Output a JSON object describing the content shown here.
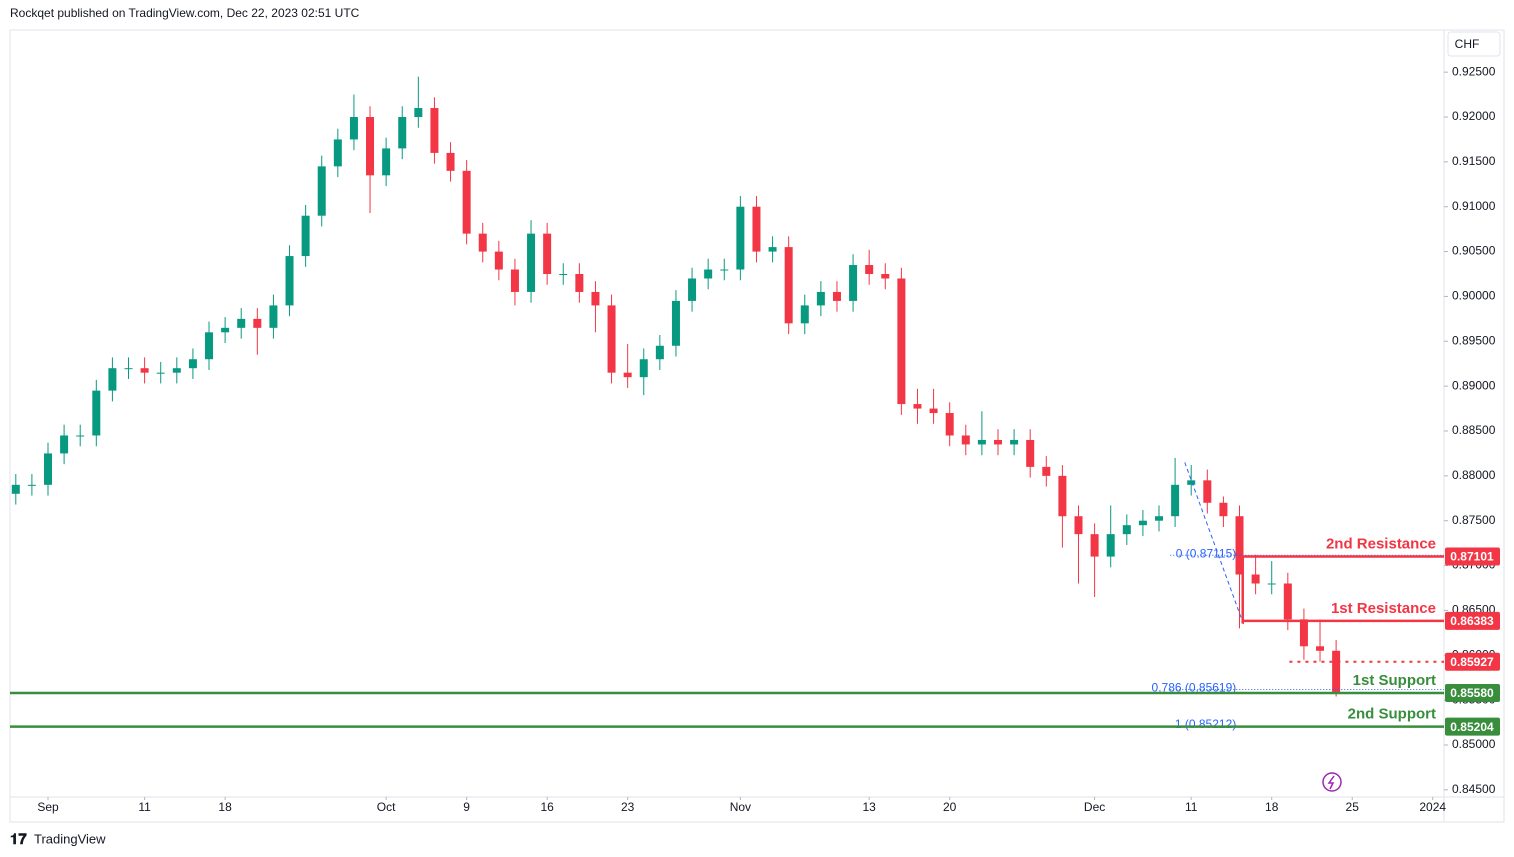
{
  "header": {
    "text": "Rockqet published on TradingView.com, Dec 22, 2023 02:51 UTC"
  },
  "footer": {
    "brand": "TradingView"
  },
  "chart_data": {
    "type": "candlestick",
    "currency": "CHF",
    "up_color": "#089981",
    "down_color": "#f23645",
    "grid": false,
    "x": [
      -2,
      -1,
      0,
      1,
      2,
      3,
      4,
      5,
      6,
      7,
      8,
      9,
      10,
      11,
      12,
      13,
      14,
      15,
      16,
      17,
      18,
      19,
      20,
      21,
      22,
      23,
      24,
      25,
      26,
      27,
      28,
      29,
      30,
      31,
      32,
      33,
      34,
      35,
      36,
      37,
      38,
      39,
      40,
      41,
      42,
      43,
      44,
      45,
      46,
      47,
      48,
      49,
      50,
      51,
      52,
      53,
      54,
      55,
      56,
      57,
      58,
      59,
      60,
      61,
      62,
      63,
      64,
      65,
      66,
      67,
      68,
      69,
      70,
      71,
      72,
      73,
      74,
      75,
      76,
      77,
      78,
      79,
      80
    ],
    "open": [
      0.878,
      0.879,
      0.879,
      0.8825,
      0.8845,
      0.8845,
      0.8895,
      0.892,
      0.892,
      0.8915,
      0.8915,
      0.892,
      0.893,
      0.896,
      0.8965,
      0.8975,
      0.8965,
      0.899,
      0.9045,
      0.909,
      0.9145,
      0.9175,
      0.92,
      0.9135,
      0.9165,
      0.92,
      0.921,
      0.916,
      0.914,
      0.907,
      0.905,
      0.903,
      0.9005,
      0.907,
      0.9025,
      0.9025,
      0.9005,
      0.899,
      0.8915,
      0.891,
      0.893,
      0.8945,
      0.8995,
      0.902,
      0.903,
      0.903,
      0.91,
      0.905,
      0.9055,
      0.897,
      0.899,
      0.9005,
      0.8995,
      0.9035,
      0.9025,
      0.902,
      0.888,
      0.8875,
      0.887,
      0.8845,
      0.8835,
      0.884,
      0.8835,
      0.884,
      0.881,
      0.88,
      0.8755,
      0.8735,
      0.871,
      0.8735,
      0.8745,
      0.875,
      0.8755,
      0.879,
      0.8795,
      0.877,
      0.8755,
      0.869,
      0.868,
      0.868,
      0.864,
      0.861,
      0.8605
    ],
    "high": [
      0.8802,
      0.8802,
      0.8837,
      0.8857,
      0.8857,
      0.8907,
      0.8932,
      0.8932,
      0.8932,
      0.8927,
      0.8932,
      0.8942,
      0.8972,
      0.8977,
      0.8987,
      0.8987,
      0.9002,
      0.9057,
      0.9102,
      0.9157,
      0.9187,
      0.9225,
      0.9212,
      0.9177,
      0.9212,
      0.9245,
      0.9222,
      0.9172,
      0.9152,
      0.9082,
      0.9062,
      0.9042,
      0.9085,
      0.9082,
      0.9037,
      0.9037,
      0.9017,
      0.9002,
      0.8947,
      0.8942,
      0.8957,
      0.9007,
      0.9032,
      0.9042,
      0.9042,
      0.9112,
      0.9112,
      0.9067,
      0.9067,
      0.9002,
      0.9017,
      0.9017,
      0.9047,
      0.9052,
      0.9037,
      0.9032,
      0.8897,
      0.8897,
      0.8882,
      0.8857,
      0.8872,
      0.8852,
      0.8852,
      0.8852,
      0.8822,
      0.8812,
      0.8767,
      0.8747,
      0.8767,
      0.8757,
      0.8762,
      0.8767,
      0.882,
      0.8812,
      0.8807,
      0.8777,
      0.8767,
      0.8712,
      0.8705,
      0.8692,
      0.8652,
      0.864,
      0.8617
    ],
    "low": [
      0.8768,
      0.8778,
      0.8778,
      0.8813,
      0.8833,
      0.8833,
      0.8883,
      0.8908,
      0.8903,
      0.8903,
      0.8903,
      0.8908,
      0.8918,
      0.8948,
      0.8953,
      0.8935,
      0.8953,
      0.8978,
      0.9033,
      0.9078,
      0.9133,
      0.9163,
      0.9093,
      0.9123,
      0.9153,
      0.9188,
      0.9148,
      0.9128,
      0.9058,
      0.9038,
      0.9018,
      0.899,
      0.8993,
      0.9013,
      0.9013,
      0.8993,
      0.896,
      0.8903,
      0.8898,
      0.889,
      0.8918,
      0.8933,
      0.8983,
      0.9008,
      0.9018,
      0.9018,
      0.9038,
      0.9038,
      0.8958,
      0.8958,
      0.8978,
      0.8983,
      0.8983,
      0.9013,
      0.9008,
      0.8868,
      0.8858,
      0.8858,
      0.8833,
      0.8823,
      0.8823,
      0.8823,
      0.8823,
      0.8798,
      0.8788,
      0.872,
      0.868,
      0.8665,
      0.8698,
      0.8723,
      0.8733,
      0.8738,
      0.8743,
      0.8778,
      0.8758,
      0.8743,
      0.863,
      0.8668,
      0.8668,
      0.8628,
      0.8595,
      0.8593,
      0.8554
    ],
    "close": [
      0.879,
      0.879,
      0.8825,
      0.8845,
      0.8845,
      0.8895,
      0.892,
      0.892,
      0.8915,
      0.8915,
      0.892,
      0.893,
      0.896,
      0.8965,
      0.8975,
      0.8965,
      0.899,
      0.9045,
      0.909,
      0.9145,
      0.9175,
      0.92,
      0.9135,
      0.9165,
      0.92,
      0.921,
      0.916,
      0.914,
      0.907,
      0.905,
      0.903,
      0.9005,
      0.907,
      0.9025,
      0.9025,
      0.9005,
      0.899,
      0.8915,
      0.891,
      0.893,
      0.8945,
      0.8995,
      0.902,
      0.903,
      0.903,
      0.91,
      0.905,
      0.9055,
      0.897,
      0.899,
      0.9005,
      0.8995,
      0.9035,
      0.9025,
      0.902,
      0.888,
      0.8875,
      0.887,
      0.8845,
      0.8835,
      0.884,
      0.8835,
      0.884,
      0.881,
      0.88,
      0.8755,
      0.8735,
      0.871,
      0.8735,
      0.8745,
      0.875,
      0.8755,
      0.879,
      0.8795,
      0.877,
      0.8755,
      0.869,
      0.868,
      0.868,
      0.864,
      0.861,
      0.8605,
      0.8558
    ],
    "xlim": [
      -2.36,
      86.7
    ],
    "xticks": [
      {
        "value": 0,
        "label": "Sep"
      },
      {
        "value": 6,
        "label": "11"
      },
      {
        "value": 11,
        "label": "18"
      },
      {
        "value": 21,
        "label": "Oct"
      },
      {
        "value": 26,
        "label": "9"
      },
      {
        "value": 31,
        "label": "16"
      },
      {
        "value": 36,
        "label": "23"
      },
      {
        "value": 43,
        "label": "Nov"
      },
      {
        "value": 51,
        "label": "13"
      },
      {
        "value": 56,
        "label": "20"
      },
      {
        "value": 65,
        "label": "Dec"
      },
      {
        "value": 71,
        "label": "11"
      },
      {
        "value": 76,
        "label": "18"
      },
      {
        "value": 81,
        "label": "25"
      },
      {
        "value": 86,
        "label": "2024"
      }
    ],
    "ylim": [
      0.8442,
      0.9297
    ],
    "yticks": [
      {
        "value": 0.925,
        "label": "0.92500"
      },
      {
        "value": 0.92,
        "label": "0.92000"
      },
      {
        "value": 0.915,
        "label": "0.91500"
      },
      {
        "value": 0.91,
        "label": "0.91000"
      },
      {
        "value": 0.905,
        "label": "0.90500"
      },
      {
        "value": 0.9,
        "label": "0.90000"
      },
      {
        "value": 0.895,
        "label": "0.89500"
      },
      {
        "value": 0.89,
        "label": "0.89000"
      },
      {
        "value": 0.885,
        "label": "0.88500"
      },
      {
        "value": 0.88,
        "label": "0.88000"
      },
      {
        "value": 0.875,
        "label": "0.87500"
      },
      {
        "value": 0.87,
        "label": "0.87000"
      },
      {
        "value": 0.865,
        "label": "0.86500"
      },
      {
        "value": 0.86,
        "label": "0.86000"
      },
      {
        "value": 0.855,
        "label": "0.85500"
      },
      {
        "value": 0.85,
        "label": "0.85000"
      },
      {
        "value": 0.845,
        "label": "0.84500"
      }
    ],
    "levels": [
      {
        "name": "2nd Resistance",
        "value": 0.87101,
        "color": "#f23645",
        "style": "solid",
        "from_x": 74.2
      },
      {
        "name": "1st Resistance",
        "value": 0.86383,
        "color": "#f23645",
        "style": "solid",
        "from_x": 74.2
      },
      {
        "value": 0.85927,
        "color": "#f23645",
        "style": "dotted",
        "from_x": 77.1
      },
      {
        "name": "1st Support",
        "value": 0.8558,
        "value_label": "0.85580",
        "color": "#388e3c",
        "style": "solid"
      },
      {
        "name": "2nd Support",
        "value": 0.85204,
        "color": "#388e3c",
        "style": "solid"
      }
    ],
    "fib": {
      "color": "#2962ff",
      "from_x": 69.7,
      "levels": [
        {
          "label": "0 (0.87115)",
          "value": 0.87115
        },
        {
          "label": "0.786 (0.85619)",
          "value": 0.85619
        },
        {
          "label": "1 (0.85212)",
          "value": 0.85212
        }
      ],
      "trend": {
        "x": [
          70.6,
          74.3
        ],
        "y": [
          0.8815,
          0.8632
        ]
      }
    }
  }
}
